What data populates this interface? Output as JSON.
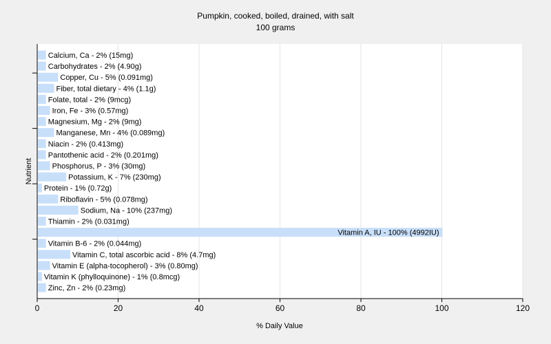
{
  "chart_data": {
    "type": "bar",
    "orientation": "horizontal",
    "title": "Pumpkin, cooked, boiled, drained, with salt",
    "subtitle": "100 grams",
    "xlabel": "% Daily Value",
    "ylabel": "Nutrient",
    "xlim": [
      0,
      120
    ],
    "xticks": [
      "0",
      "20",
      "40",
      "60",
      "80",
      "100",
      "120"
    ],
    "grid": true,
    "bar_color": "#c8dffa",
    "categories": [
      "Calcium, Ca - 2% (15mg)",
      "Carbohydrates - 2% (4.90g)",
      "Copper, Cu - 5% (0.091mg)",
      "Fiber, total dietary - 4% (1.1g)",
      "Folate, total - 2% (9mcg)",
      "Iron, Fe - 3% (0.57mg)",
      "Magnesium, Mg - 2% (9mg)",
      "Manganese, Mn - 4% (0.089mg)",
      "Niacin - 2% (0.413mg)",
      "Pantothenic acid - 2% (0.201mg)",
      "Phosphorus, P - 3% (30mg)",
      "Potassium, K - 7% (230mg)",
      "Protein - 1% (0.72g)",
      "Riboflavin - 5% (0.078mg)",
      "Sodium, Na - 10% (237mg)",
      "Thiamin - 2% (0.031mg)",
      "Vitamin A, IU - 100% (4992IU)",
      "Vitamin B-6 - 2% (0.044mg)",
      "Vitamin C, total ascorbic acid - 8% (4.7mg)",
      "Vitamin E (alpha-tocopherol) - 3% (0.80mg)",
      "Vitamin K (phylloquinone) - 1% (0.8mcg)",
      "Zinc, Zn - 2% (0.23mg)"
    ],
    "values": [
      2,
      2,
      5,
      4,
      2,
      3,
      2,
      4,
      2,
      2,
      3,
      7,
      1,
      5,
      10,
      2,
      100,
      2,
      8,
      3,
      1,
      2
    ]
  }
}
